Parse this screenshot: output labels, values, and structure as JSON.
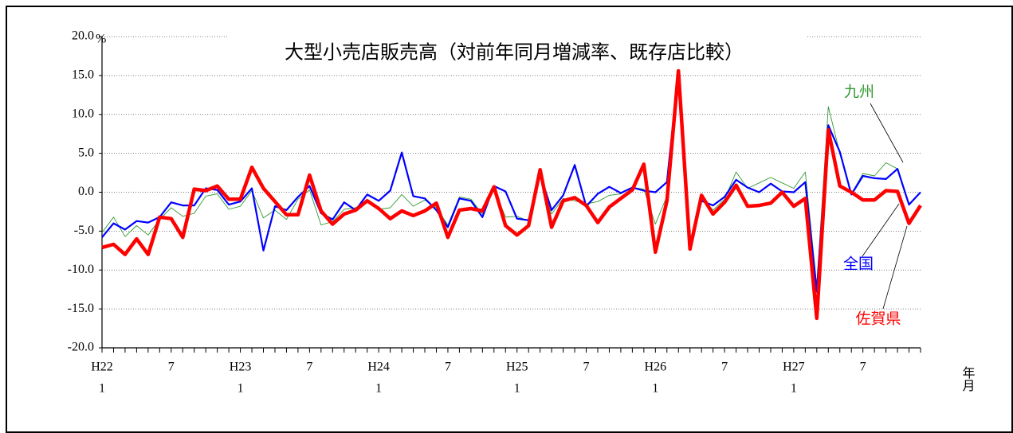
{
  "chart_data": {
    "type": "line",
    "title": "大型小売店販売高（対前年同月増減率、既存店比較）",
    "y_unit": "%",
    "x_label": "年月",
    "categories": [
      "H22",
      null,
      null,
      null,
      null,
      null,
      "7",
      null,
      null,
      null,
      null,
      null,
      "H23",
      null,
      null,
      null,
      null,
      null,
      "7",
      null,
      null,
      null,
      null,
      null,
      "H24",
      null,
      null,
      null,
      null,
      null,
      "7",
      null,
      null,
      null,
      null,
      null,
      "H25",
      null,
      null,
      null,
      null,
      null,
      "7",
      null,
      null,
      null,
      null,
      null,
      "H26",
      null,
      null,
      null,
      null,
      null,
      "7",
      null,
      null,
      null,
      null,
      null,
      "H27",
      null,
      null,
      null,
      null,
      null,
      "7",
      null,
      null,
      null,
      null,
      null
    ],
    "category_sublabels": [
      "1",
      null,
      null,
      null,
      null,
      null,
      null,
      null,
      null,
      null,
      null,
      null,
      "1",
      null,
      null,
      null,
      null,
      null,
      null,
      null,
      null,
      null,
      null,
      null,
      "1",
      null,
      null,
      null,
      null,
      null,
      null,
      null,
      null,
      null,
      null,
      null,
      "1",
      null,
      null,
      null,
      null,
      null,
      null,
      null,
      null,
      null,
      null,
      null,
      "1",
      null,
      null,
      null,
      null,
      null,
      null,
      null,
      null,
      null,
      null,
      null,
      "1",
      null,
      null,
      null,
      null,
      null,
      null,
      null,
      null,
      null,
      null,
      null
    ],
    "series": [
      {
        "name": "佐賀県",
        "color": "#ff0000",
        "values": [
          -7.1,
          -6.7,
          -8.0,
          -6.0,
          -8.0,
          -3.2,
          -3.4,
          -5.8,
          0.4,
          0.2,
          0.8,
          -0.9,
          -0.9,
          3.2,
          0.5,
          -1.2,
          -2.9,
          -2.9,
          2.2,
          -2.4,
          -4.1,
          -2.8,
          -2.3,
          -1.1,
          -2.1,
          -3.4,
          -2.4,
          -3.0,
          -2.4,
          -1.4,
          -5.8,
          -2.3,
          -2.1,
          -2.4,
          0.7,
          -4.3,
          -5.5,
          -4.3,
          2.9,
          -4.5,
          -1.1,
          -0.7,
          -1.7,
          -3.9,
          -1.9,
          -0.8,
          0.3,
          3.6,
          -7.7,
          -1.1,
          15.6,
          -7.3,
          -0.4,
          -2.8,
          -1.3,
          0.9,
          -1.8,
          -1.7,
          -1.4,
          0.0,
          -1.8,
          -0.8,
          -16.2,
          8.0,
          0.8,
          0.0,
          -1.0,
          -1.0,
          0.2,
          0.1,
          -4.0,
          -1.7
        ]
      },
      {
        "name": "全国",
        "color": "#0000ff",
        "values": [
          -5.8,
          -4.0,
          -4.8,
          -3.7,
          -3.9,
          -3.2,
          -1.3,
          -1.7,
          -1.7,
          0.5,
          0.3,
          -1.6,
          -1.2,
          0.5,
          -7.5,
          -1.8,
          -2.3,
          -0.6,
          0.8,
          -2.7,
          -3.5,
          -1.3,
          -2.3,
          -0.3,
          -1.1,
          0.2,
          5.1,
          -0.5,
          -0.8,
          -2.3,
          -4.5,
          -0.8,
          -1.1,
          -3.2,
          0.8,
          0.1,
          -3.4,
          -3.6,
          2.3,
          -2.3,
          -0.4,
          3.5,
          -1.8,
          -0.2,
          0.7,
          -0.1,
          0.6,
          0.2,
          0.0,
          1.3,
          15.5,
          -6.9,
          -1.1,
          -1.7,
          -0.6,
          1.6,
          0.6,
          0.0,
          1.1,
          0.1,
          0.0,
          1.3,
          -12.8,
          8.6,
          5.2,
          -0.3,
          2.1,
          1.8,
          1.7,
          3.0,
          -1.6,
          0.0
        ]
      },
      {
        "name": "九州",
        "color": "#339933",
        "values": [
          -5.2,
          -3.2,
          -5.7,
          -4.3,
          -5.5,
          -3.5,
          -2.0,
          -3.1,
          -2.7,
          -0.5,
          -0.2,
          -2.2,
          -1.8,
          0.2,
          -3.3,
          -2.3,
          -3.5,
          -0.9,
          0.3,
          -4.2,
          -3.8,
          -2.2,
          -2.0,
          -1.0,
          -2.2,
          -2.0,
          -0.3,
          -1.8,
          -1.0,
          -2.0,
          -4.2,
          -0.6,
          -0.9,
          -2.8,
          0.4,
          -3.2,
          -3.1,
          -3.7,
          2.0,
          -2.8,
          -0.8,
          -1.1,
          -1.5,
          -1.2,
          -0.4,
          -0.2,
          0.6,
          0.4,
          -4.1,
          -0.5,
          15.0,
          -6.5,
          -0.6,
          -2.3,
          -0.9,
          2.6,
          0.5,
          1.2,
          1.9,
          1.2,
          0.5,
          2.6,
          -12.0,
          11.0,
          5.0,
          -0.2,
          2.4,
          2.1,
          3.8,
          3.0,
          -1.5,
          0.0
        ]
      }
    ],
    "ylim": [
      -20,
      20
    ],
    "yticks": [
      {
        "value": -20,
        "label": "-20.0"
      },
      {
        "value": -15,
        "label": "-15.0"
      },
      {
        "value": -10,
        "label": "-10.0"
      },
      {
        "value": -5,
        "label": "-5.0"
      },
      {
        "value": 0,
        "label": "0.0"
      },
      {
        "value": 5,
        "label": "5.0"
      },
      {
        "value": 10,
        "label": "10.0"
      },
      {
        "value": 15,
        "label": "15.0"
      },
      {
        "value": 20,
        "label": "20.0"
      }
    ],
    "grid": true
  }
}
